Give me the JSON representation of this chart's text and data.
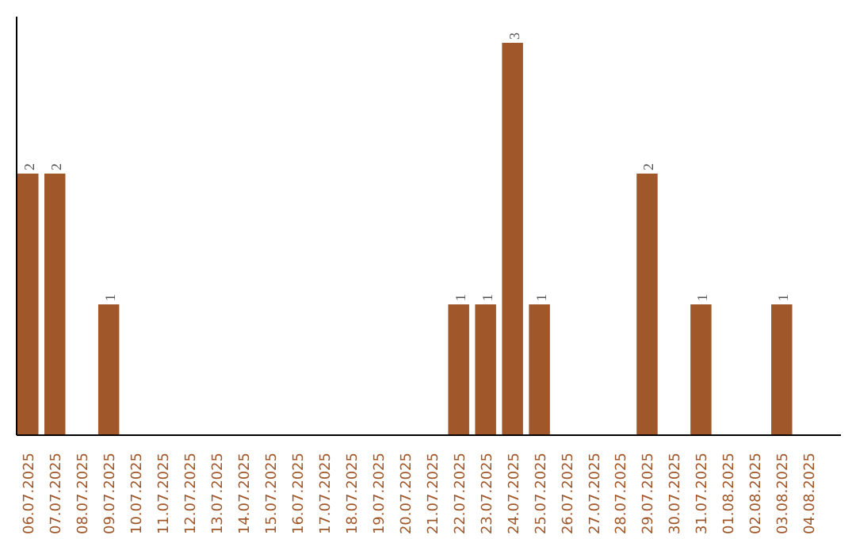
{
  "chart_data": {
    "type": "bar",
    "categories": [
      "06.07.2025",
      "07.07.2025",
      "08.07.2025",
      "09.07.2025",
      "10.07.2025",
      "11.07.2025",
      "12.07.2025",
      "13.07.2025",
      "14.07.2025",
      "15.07.2025",
      "16.07.2025",
      "17.07.2025",
      "18.07.2025",
      "19.07.2025",
      "20.07.2025",
      "21.07.2025",
      "22.07.2025",
      "23.07.2025",
      "24.07.2025",
      "25.07.2025",
      "26.07.2025",
      "27.07.2025",
      "28.07.2025",
      "29.07.2025",
      "30.07.2025",
      "31.07.2025",
      "01.08.2025",
      "02.08.2025",
      "03.08.2025",
      "04.08.2025"
    ],
    "values": [
      2,
      2,
      0,
      1,
      0,
      0,
      0,
      0,
      0,
      0,
      0,
      0,
      0,
      0,
      0,
      0,
      1,
      1,
      3,
      1,
      0,
      0,
      0,
      2,
      0,
      1,
      0,
      0,
      1,
      0
    ],
    "value_labels": [
      "2",
      "2",
      null,
      "1",
      null,
      null,
      null,
      null,
      null,
      null,
      null,
      null,
      null,
      null,
      null,
      null,
      "1",
      "1",
      "3",
      "1",
      null,
      null,
      null,
      "2",
      null,
      "1",
      null,
      null,
      "1",
      null
    ],
    "color": "#a0572a",
    "ylim": [
      0,
      3.2
    ],
    "tick_labels": "x",
    "grid": false
  }
}
